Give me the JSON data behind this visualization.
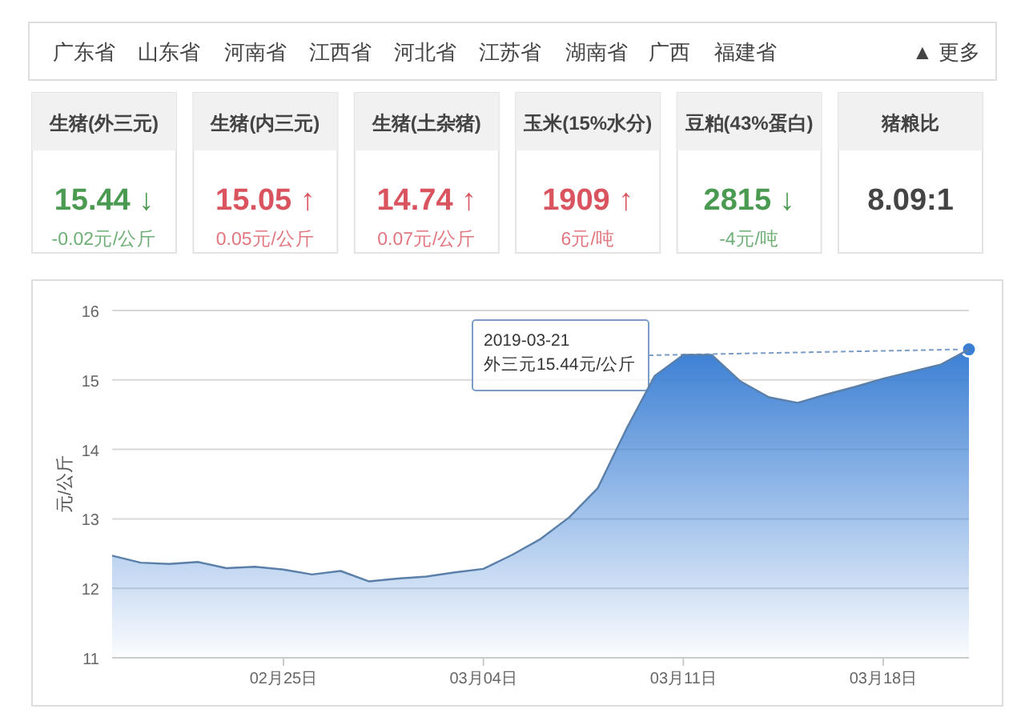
{
  "chart_data": [
    {
      "type": "other",
      "annotations": [
        "广东省",
        "山东省",
        "河南省",
        "江西省",
        "河北省",
        "江苏省",
        "湖南省",
        "广西",
        "福建省",
        "▲ 更多"
      ]
    },
    {
      "type": "other",
      "title": "生猪(外三元)",
      "annotations": [
        "15.44 ↓",
        "-0.02元/公斤"
      ],
      "colors": [
        "#4a9a52"
      ]
    },
    {
      "type": "other",
      "title": "生猪(内三元)",
      "annotations": [
        "15.05 ↑",
        "0.05元/公斤"
      ],
      "colors": [
        "#d9545e"
      ]
    },
    {
      "type": "other",
      "title": "生猪(土杂猪)",
      "annotations": [
        "14.74 ↑",
        "0.07元/公斤"
      ],
      "colors": [
        "#d9545e"
      ]
    },
    {
      "type": "other",
      "title": "玉米(15%水分)",
      "annotations": [
        "1909 ↑",
        "6元/吨"
      ],
      "colors": [
        "#d9545e"
      ]
    },
    {
      "type": "other",
      "title": "豆粕(43%蛋白)",
      "annotations": [
        "2815 ↓",
        "-4元/吨"
      ],
      "colors": [
        "#4a9a52"
      ]
    },
    {
      "type": "other",
      "title": "猪粮比",
      "annotations": [
        "8.09:1"
      ],
      "colors": [
        "#444444"
      ]
    },
    {
      "type": "area",
      "ylabel": "元/公斤",
      "x": [
        "2019-02-19",
        "2019-02-20",
        "2019-02-21",
        "2019-02-22",
        "2019-02-23",
        "2019-02-24",
        "2019-02-25",
        "2019-02-26",
        "2019-02-27",
        "2019-02-28",
        "2019-03-01",
        "2019-03-02",
        "2019-03-03",
        "2019-03-04",
        "2019-03-05",
        "2019-03-06",
        "2019-03-07",
        "2019-03-08",
        "2019-03-09",
        "2019-03-10",
        "2019-03-11",
        "2019-03-12",
        "2019-03-13",
        "2019-03-14",
        "2019-03-15",
        "2019-03-16",
        "2019-03-17",
        "2019-03-18",
        "2019-03-19",
        "2019-03-20",
        "2019-03-21"
      ],
      "series": [
        {
          "color": "#3b7fd4",
          "values": [
            12.47,
            12.37,
            12.35,
            12.38,
            12.29,
            12.31,
            12.27,
            12.2,
            12.25,
            12.1,
            12.14,
            12.17,
            12.23,
            12.28,
            12.48,
            12.71,
            13.02,
            13.44,
            14.29,
            15.06,
            15.36,
            15.36,
            14.98,
            14.75,
            14.67,
            14.79,
            14.9,
            15.02,
            15.12,
            15.22,
            15.44
          ]
        }
      ],
      "xlim": [
        "2019-02-19",
        "2019-03-21"
      ],
      "xticks": [
        {
          "value": "2019-02-25",
          "label": "02月25日"
        },
        {
          "value": "2019-03-04",
          "label": "03月04日"
        },
        {
          "value": "2019-03-11",
          "label": "03月11日"
        },
        {
          "value": "2019-03-18",
          "label": "03月18日"
        }
      ],
      "ylim": [
        11,
        16
      ],
      "yticks": [
        11,
        12,
        13,
        14,
        15,
        16
      ],
      "grid": "y",
      "annotations": [
        {
          "text": "2019-03-21\n外三元15.44元/公斤",
          "x": "2019-03-21",
          "y": 15.44
        }
      ]
    }
  ]
}
